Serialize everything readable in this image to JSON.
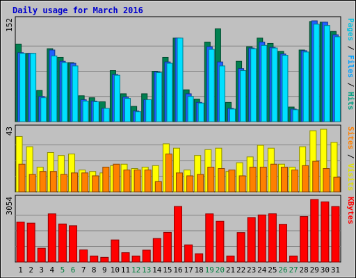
{
  "chart_data": {
    "type": "bar",
    "title": "Daily usage for March 2016",
    "days": [
      "1",
      "2",
      "3",
      "4",
      "5",
      "6",
      "7",
      "8",
      "9",
      "10",
      "11",
      "12",
      "13",
      "14",
      "15",
      "16",
      "17",
      "18",
      "19",
      "20",
      "21",
      "22",
      "23",
      "24",
      "25",
      "26",
      "27",
      "28",
      "29",
      "30",
      "31"
    ],
    "weekend_days": [
      "5",
      "6",
      "12",
      "13",
      "19",
      "20",
      "26",
      "27"
    ],
    "panels": [
      {
        "id": "pages-files-hits",
        "max_label": "152",
        "ylim": [
          0,
          152
        ],
        "ylabel_parts": [
          {
            "text": "Pages",
            "color": "#00c0e0"
          },
          {
            "text": " / ",
            "color": "#000000"
          },
          {
            "text": "Files",
            "color": "#00a0ff"
          },
          {
            "text": " / ",
            "color": "#000000"
          },
          {
            "text": "Hits",
            "color": "#00a080"
          }
        ],
        "series": [
          {
            "name": "Hits",
            "color": "#008050",
            "values": [
              117,
              103,
              47,
              110,
              97,
              89,
              39,
              36,
              30,
              77,
              42,
              23,
              42,
              76,
              97,
              126,
              48,
              34,
              120,
              140,
              29,
              91,
              113,
              126,
              118,
              106,
              22,
              108,
              151,
              150,
              136
            ]
          },
          {
            "name": "Files",
            "color": "#2060ff",
            "values": [
              104,
              103,
              38,
              108,
              91,
              88,
              33,
              31,
              20,
              71,
              37,
              16,
              33,
              75,
              90,
              126,
              42,
              29,
              113,
              90,
              20,
              80,
              111,
              120,
              112,
              102,
              19,
              107,
              152,
              150,
              131
            ]
          },
          {
            "name": "Pages",
            "color": "#00e0ff",
            "values": [
              103,
              103,
              36,
              99,
              89,
              84,
              31,
              30,
              20,
              70,
              35,
              15,
              33,
              74,
              88,
              126,
              38,
              28,
              109,
              84,
              19,
              77,
              110,
              115,
              111,
              100,
              18,
              105,
              147,
              145,
              128
            ]
          }
        ]
      },
      {
        "id": "sites-visits",
        "max_label": "43",
        "ylim": [
          0,
          43
        ],
        "ylabel_parts": [
          {
            "text": "Sites",
            "color": "#ff8000"
          },
          {
            "text": " / ",
            "color": "#000000"
          },
          {
            "text": "Visits",
            "color": "#e0e000"
          }
        ],
        "series": [
          {
            "name": "Visits",
            "color": "#ffff00",
            "values": [
              38,
              31,
              17,
              27,
              25,
              26,
              15,
              14,
              13,
              18,
              19,
              16,
              17,
              18,
              33,
              30,
              15,
              25,
              29,
              30,
              14,
              20,
              24,
              32,
              30,
              19,
              17,
              31,
              42,
              43,
              34
            ]
          },
          {
            "name": "Sites",
            "color": "#ff8000",
            "values": [
              19,
              12,
              14,
              14,
              12,
              13,
              13,
              11,
              17,
              19,
              15,
              15,
              15,
              7,
              26,
              13,
              11,
              12,
              17,
              16,
              15,
              11,
              17,
              17,
              19,
              17,
              15,
              18,
              21,
              16,
              10
            ]
          }
        ]
      },
      {
        "id": "kbytes",
        "max_label": "3054",
        "ylim": [
          0,
          3054
        ],
        "ylabel_parts": [
          {
            "text": "KBytes",
            "color": "#ff0000"
          }
        ],
        "series": [
          {
            "name": "KBytes",
            "color": "#ff0000",
            "values": [
              1954,
              1897,
              674,
              2352,
              1858,
              1770,
              592,
              295,
              227,
              1080,
              456,
              295,
              580,
              1148,
              1446,
              2713,
              838,
              405,
              2352,
              1992,
              295,
              1437,
              2173,
              2300,
              2355,
              1842,
              295,
              2220,
              3054,
              2937,
              2709
            ]
          }
        ]
      }
    ]
  }
}
